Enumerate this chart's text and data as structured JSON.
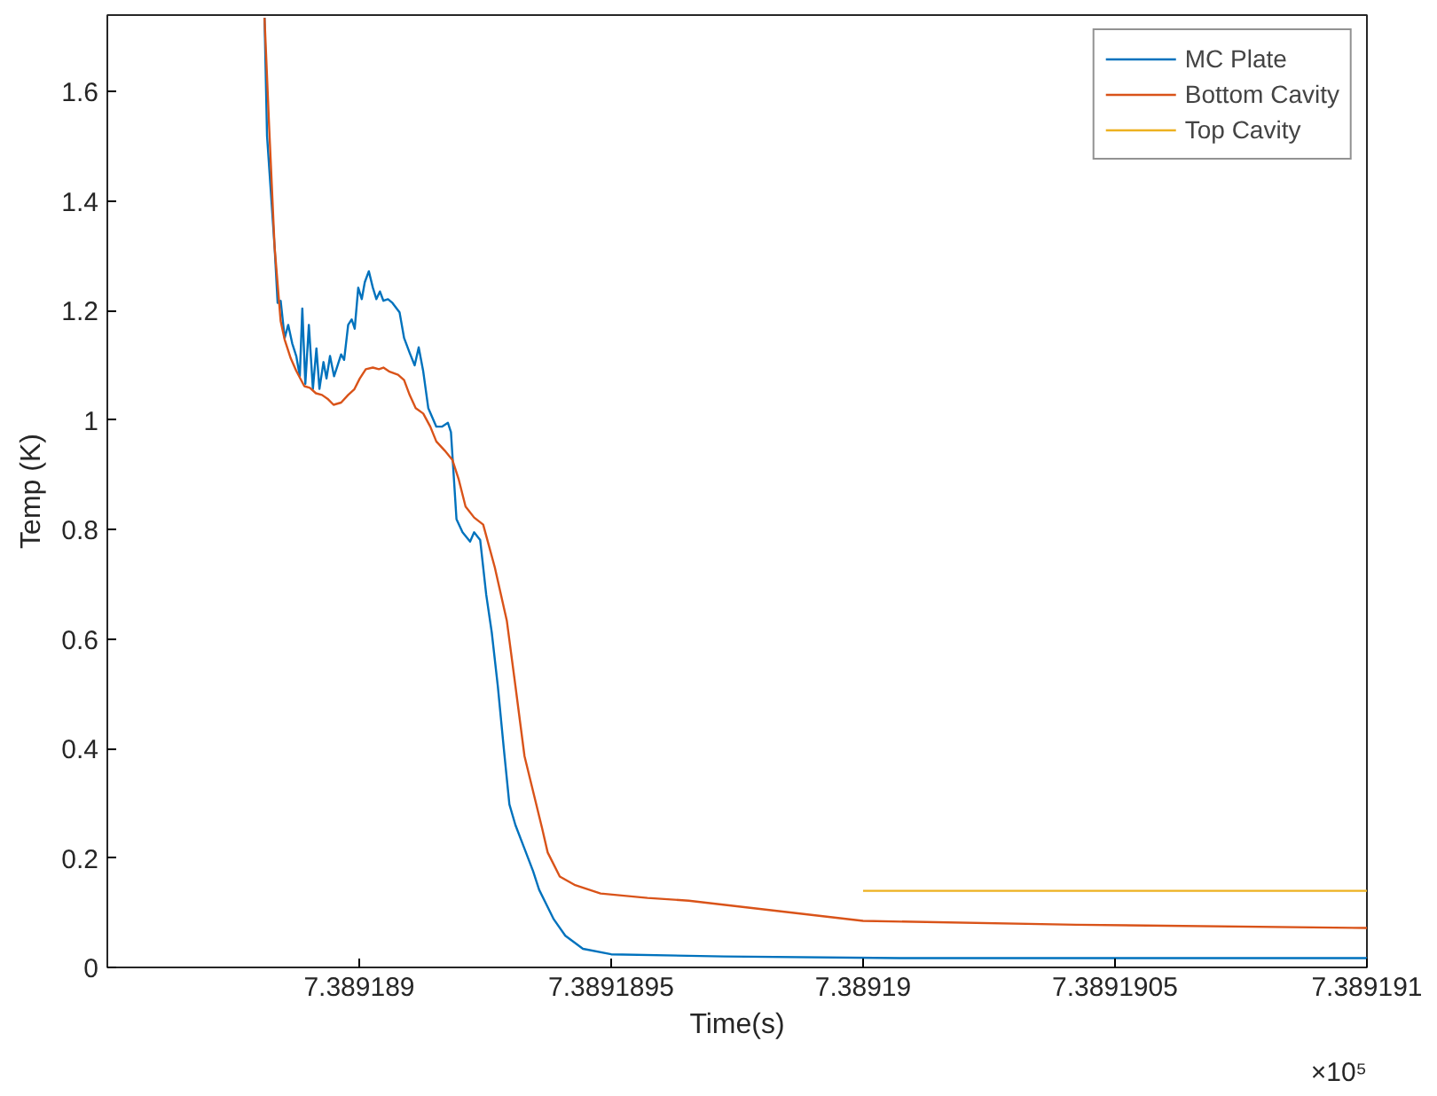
{
  "chart_data": {
    "type": "line",
    "xlabel": "Time(s)",
    "ylabel": "Temp (K)",
    "annotations": [
      "×10⁵"
    ],
    "xlim": [
      7.3891885,
      7.389191
    ],
    "ylim": [
      0,
      1.74
    ],
    "xticks": [
      7.389189,
      7.3891895,
      7.38919,
      7.3891905,
      7.389191
    ],
    "yticks": [
      0,
      0.2,
      0.4,
      0.6,
      0.8,
      1,
      1.2,
      1.4,
      1.6
    ],
    "grid": false,
    "legend": "top right",
    "marker": "none",
    "line_style": "solid",
    "series": [
      {
        "name": "MC Plate",
        "color": "#0072bd",
        "x": [
          7.389188812,
          7.389188817,
          7.389188832,
          7.389188838,
          7.389188844,
          7.389188852,
          7.389188859,
          7.389188867,
          7.389188875,
          7.389188882,
          7.389188887,
          7.389188893,
          7.3891889,
          7.389188908,
          7.389188915,
          7.389188921,
          7.389188929,
          7.389188935,
          7.389188942,
          7.38918895,
          7.389188957,
          7.389188964,
          7.38918897,
          7.389188978,
          7.389188985,
          7.389188991,
          7.389188998,
          7.389189005,
          7.389189011,
          7.389189019,
          7.389189027,
          7.389189034,
          7.389189041,
          7.389189048,
          7.389189057,
          7.389189066,
          7.38918908,
          7.389189089,
          7.3891891,
          7.38918911,
          7.389189118,
          7.389189127,
          7.389189137,
          7.389189153,
          7.389189164,
          7.389189176,
          7.389189182,
          7.389189193,
          7.389189205,
          7.38918922,
          7.389189228,
          7.38918924,
          7.389189252,
          7.389189263,
          7.389189275,
          7.389189287,
          7.389189298,
          7.38918931,
          7.389189328,
          7.389189345,
          7.389189357,
          7.389189386,
          7.389189409,
          7.389189444,
          7.3891895,
          7.389189724,
          7.389190073,
          7.389191
        ],
        "values": [
          1.735,
          1.519,
          1.316,
          1.214,
          1.218,
          1.15,
          1.174,
          1.14,
          1.117,
          1.08,
          1.204,
          1.066,
          1.174,
          1.057,
          1.131,
          1.057,
          1.106,
          1.076,
          1.117,
          1.08,
          1.1,
          1.12,
          1.11,
          1.174,
          1.184,
          1.167,
          1.242,
          1.221,
          1.252,
          1.272,
          1.242,
          1.221,
          1.235,
          1.218,
          1.221,
          1.214,
          1.197,
          1.15,
          1.123,
          1.1,
          1.133,
          1.089,
          1.022,
          0.988,
          0.988,
          0.995,
          0.978,
          0.819,
          0.795,
          0.778,
          0.795,
          0.781,
          0.681,
          0.612,
          0.514,
          0.399,
          0.298,
          0.26,
          0.217,
          0.176,
          0.142,
          0.088,
          0.058,
          0.034,
          0.024,
          0.02,
          0.017,
          0.017
        ]
      },
      {
        "name": "Bottom Cavity",
        "color": "#d95319",
        "x": [
          7.389188812,
          7.389188821,
          7.389188832,
          7.389188844,
          7.389188852,
          7.389188864,
          7.389188875,
          7.389188891,
          7.389188902,
          7.389188914,
          7.389188926,
          7.389188937,
          7.389188949,
          7.389188964,
          7.389188978,
          7.38918899,
          7.389189001,
          7.389189013,
          7.389189027,
          7.389189039,
          7.389189048,
          7.389189059,
          7.389189077,
          7.389189089,
          7.3891891,
          7.389189112,
          7.389189127,
          7.389189141,
          7.389189153,
          7.38918917,
          7.389189185,
          7.389189197,
          7.389189211,
          7.389189228,
          7.389189246,
          7.389189269,
          7.389189293,
          7.38918931,
          7.389189328,
          7.389189363,
          7.389189374,
          7.389189398,
          7.389189427,
          7.389189479,
          7.389189572,
          7.389189654,
          7.38919,
          7.389190423,
          7.389191
        ],
        "values": [
          1.735,
          1.539,
          1.316,
          1.181,
          1.147,
          1.113,
          1.09,
          1.062,
          1.059,
          1.049,
          1.046,
          1.039,
          1.028,
          1.032,
          1.046,
          1.056,
          1.076,
          1.093,
          1.096,
          1.093,
          1.096,
          1.089,
          1.083,
          1.073,
          1.046,
          1.022,
          1.012,
          0.988,
          0.961,
          0.944,
          0.927,
          0.893,
          0.842,
          0.822,
          0.809,
          0.731,
          0.633,
          0.514,
          0.386,
          0.254,
          0.21,
          0.166,
          0.151,
          0.135,
          0.127,
          0.122,
          0.085,
          0.078,
          0.072
        ]
      },
      {
        "name": "Top Cavity",
        "color": "#edb120",
        "x": [
          7.38919,
          7.389191
        ],
        "values": [
          0.14,
          0.14
        ]
      }
    ]
  }
}
